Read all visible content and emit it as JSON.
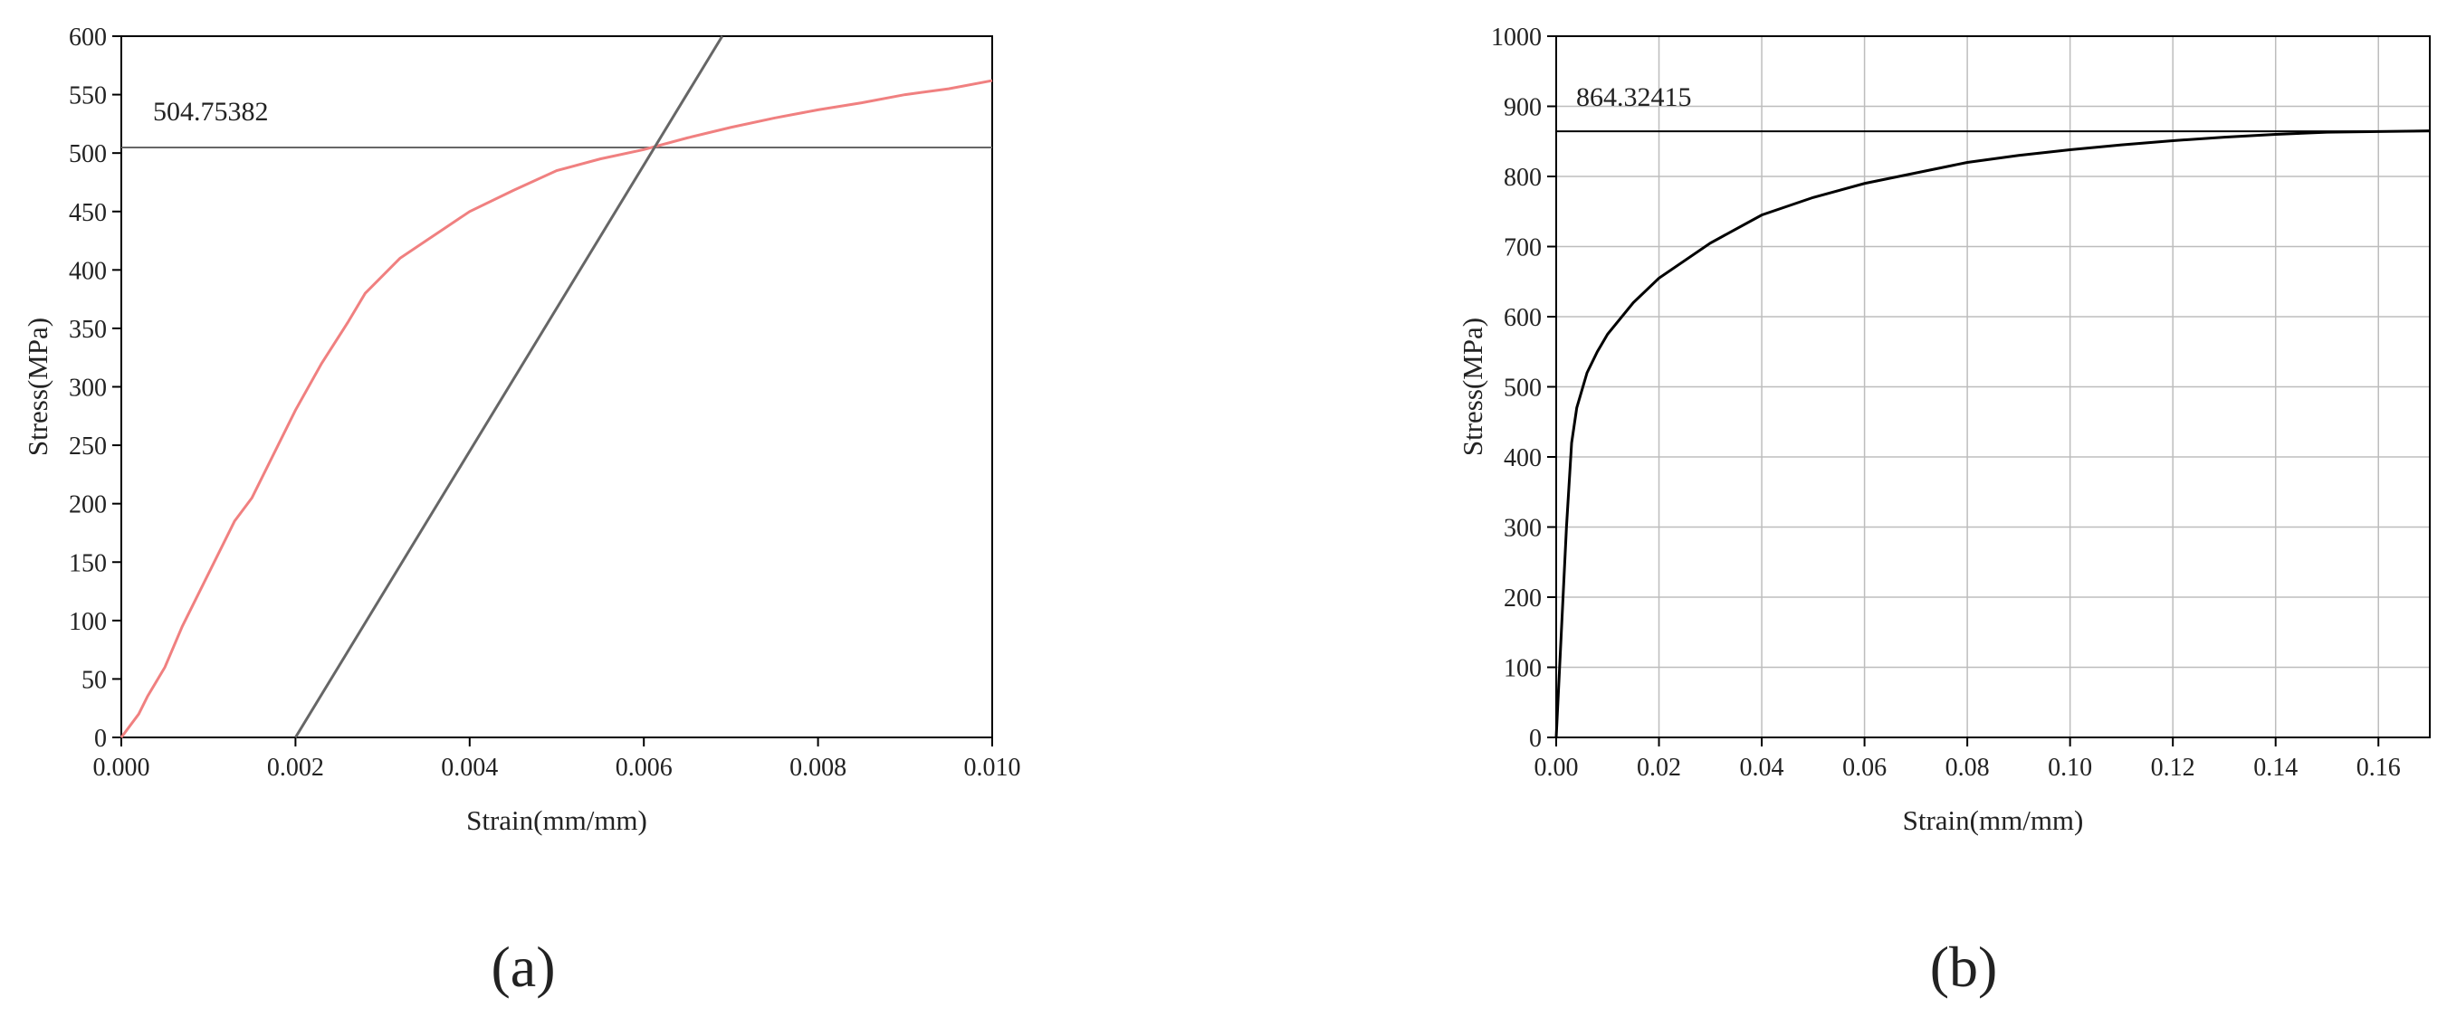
{
  "chart_data": [
    {
      "type": "line",
      "panel_label": "(a)",
      "xlabel": "Strain(mm/mm)",
      "ylabel": "Stress(MPa)",
      "xlim": [
        0,
        0.01
      ],
      "ylim": [
        0,
        600
      ],
      "xticks": [
        {
          "value": 0,
          "label": "0.000"
        },
        {
          "value": 0.002,
          "label": "0.002"
        },
        {
          "value": 0.004,
          "label": "0.004"
        },
        {
          "value": 0.006,
          "label": "0.006"
        },
        {
          "value": 0.008,
          "label": "0.008"
        },
        {
          "value": 0.01,
          "label": "0.010"
        }
      ],
      "yticks": [
        0,
        50,
        100,
        150,
        200,
        250,
        300,
        350,
        400,
        450,
        500,
        550,
        600
      ],
      "grid": false,
      "hline": 504.75382,
      "hline_color": "#666666",
      "series": [
        {
          "color": "#f08080",
          "x": [
            0,
            0.0002,
            0.0003,
            0.0005,
            0.0007,
            0.001,
            0.0013,
            0.0015,
            0.0018,
            0.002,
            0.0023,
            0.0026,
            0.0028,
            0.003,
            0.0032,
            0.0035,
            0.004,
            0.0045,
            0.005,
            0.0055,
            0.006,
            0.0065,
            0.007,
            0.0075,
            0.008,
            0.0085,
            0.009,
            0.0095,
            0.01
          ],
          "values": [
            0,
            20,
            35,
            60,
            95,
            140,
            185,
            205,
            250,
            280,
            320,
            355,
            380,
            395,
            410,
            425,
            450,
            468,
            485,
            495,
            503,
            513,
            522,
            530,
            537,
            543,
            550,
            555,
            562
          ]
        },
        {
          "color": "#666666",
          "x": [
            0.002,
            0.0069
          ],
          "values": [
            0,
            600
          ]
        }
      ]
    },
    {
      "type": "line",
      "panel_label": "(b)",
      "xlabel": "Strain(mm/mm)",
      "ylabel": "Stress(MPa)",
      "xlim": [
        0,
        0.17
      ],
      "ylim": [
        0,
        1000
      ],
      "xticks": [
        {
          "value": 0,
          "label": "0.00"
        },
        {
          "value": 0.02,
          "label": "0.02"
        },
        {
          "value": 0.04,
          "label": "0.04"
        },
        {
          "value": 0.06,
          "label": "0.06"
        },
        {
          "value": 0.08,
          "label": "0.08"
        },
        {
          "value": 0.1,
          "label": "0.10"
        },
        {
          "value": 0.12,
          "label": "0.12"
        },
        {
          "value": 0.14,
          "label": "0.14"
        },
        {
          "value": 0.16,
          "label": "0.16"
        }
      ],
      "yticks": [
        0,
        100,
        200,
        300,
        400,
        500,
        600,
        700,
        800,
        900,
        1000
      ],
      "grid": true,
      "hline": 864.32415,
      "hline_color": "#000000",
      "series": [
        {
          "color": "#000000",
          "x": [
            0,
            0.001,
            0.002,
            0.003,
            0.004,
            0.006,
            0.008,
            0.01,
            0.015,
            0.02,
            0.03,
            0.04,
            0.05,
            0.06,
            0.07,
            0.08,
            0.09,
            0.1,
            0.11,
            0.12,
            0.13,
            0.14,
            0.15,
            0.16,
            0.17
          ],
          "values": [
            0,
            150,
            300,
            420,
            470,
            520,
            550,
            575,
            620,
            655,
            705,
            745,
            770,
            790,
            805,
            820,
            830,
            838,
            845,
            851,
            856,
            860,
            863,
            864,
            865
          ]
        }
      ]
    }
  ]
}
